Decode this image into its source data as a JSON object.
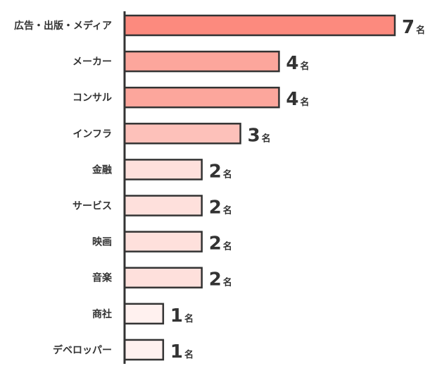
{
  "chart_data": {
    "type": "bar",
    "orientation": "horizontal",
    "categories": [
      "広告・出版・メディア",
      "メーカー",
      "コンサル",
      "インフラ",
      "金融",
      "サービス",
      "映画",
      "音楽",
      "商社",
      "デベロッパー"
    ],
    "values": [
      7,
      4,
      4,
      3,
      2,
      2,
      2,
      2,
      1,
      1
    ],
    "unit": "名",
    "title": "",
    "xlabel": "",
    "ylabel": "",
    "xlim": [
      0,
      7
    ],
    "grid": false,
    "legend": "none",
    "colors": {
      "7": "#fc8a7e",
      "4": "#fca69c",
      "3": "#fdc1ba",
      "2": "#fee0dc",
      "1": "#fff1ef"
    },
    "stroke_color": "#333333"
  }
}
